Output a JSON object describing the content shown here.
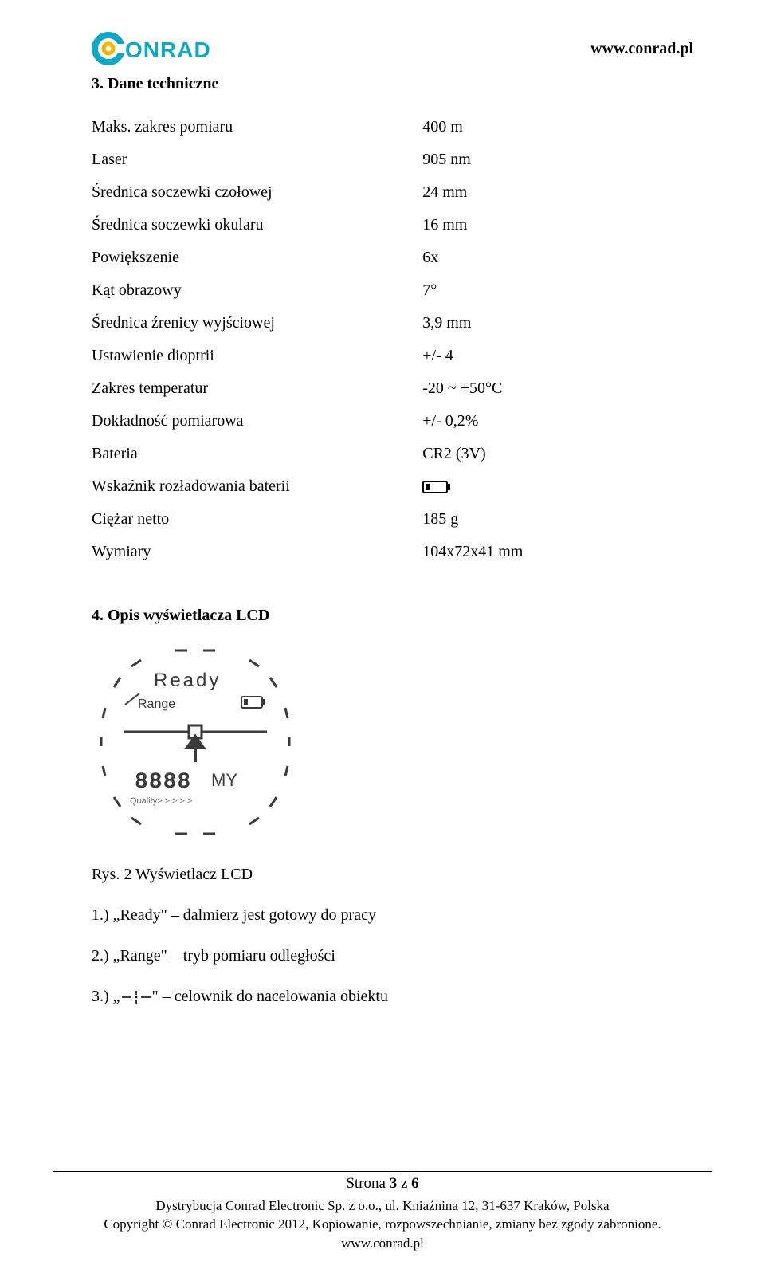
{
  "header": {
    "brand_text": "ONRAD",
    "brand_color": "#0ea7c6",
    "ring_color": "#f7b500",
    "url": "www.conrad.pl"
  },
  "section3": {
    "title": "3. Dane techniczne",
    "rows": [
      {
        "label": "Maks. zakres pomiaru",
        "value": "400 m"
      },
      {
        "label": "Laser",
        "value": "905 nm"
      },
      {
        "label": "Średnica soczewki czołowej",
        "value": "24 mm"
      },
      {
        "label": "Średnica soczewki okularu",
        "value": "16 mm"
      },
      {
        "label": "Powiększenie",
        "value": "6x"
      },
      {
        "label": "Kąt obrazowy",
        "value": "7°"
      },
      {
        "label": "Średnica źrenicy wyjściowej",
        "value": "3,9 mm"
      },
      {
        "label": "Ustawienie dioptrii",
        "value": "+/- 4"
      },
      {
        "label": "Zakres temperatur",
        "value": "-20 ~ +50°C"
      },
      {
        "label": "Dokładność pomiarowa",
        "value": "+/- 0,2%"
      },
      {
        "label": "Bateria",
        "value": "CR2 (3V)"
      },
      {
        "label": "Wskaźnik rozładowania baterii",
        "value": "__BATTERY_ICON__"
      },
      {
        "label": "Ciężar netto",
        "value": "185 g"
      },
      {
        "label": "Wymiary",
        "value": "104x72x41 mm"
      }
    ]
  },
  "section4": {
    "title": "4. Opis wyświetlacza LCD",
    "lcd": {
      "ready_text": "Ready",
      "range_text": "Range",
      "digits_text": "8888",
      "my_text": "MY",
      "quality_text": "Quality> > > > >",
      "stroke": "#3a3a3a",
      "bg": "#f4f4f4"
    },
    "caption": "Rys. 2 Wyświetlacz LCD",
    "items": {
      "i1_pre": "1.) „Ready\" – dalmierz jest gotowy do pracy",
      "i2_pre": "2.) „Range\" – tryb pomiaru odległości",
      "i3_pre": "3.) „",
      "i3_post": "\" – celownik do nacelowania obiektu"
    }
  },
  "footer": {
    "page": "Strona 3 z 6",
    "line1": "Dystrybucja Conrad Electronic Sp. z o.o., ul. Kniaźnina 12, 31-637 Kraków, Polska",
    "line2": "Copyright © Conrad Electronic 2012, Kopiowanie, rozpowszechnianie, zmiany bez zgody zabronione.",
    "line3": "www.conrad.pl"
  }
}
